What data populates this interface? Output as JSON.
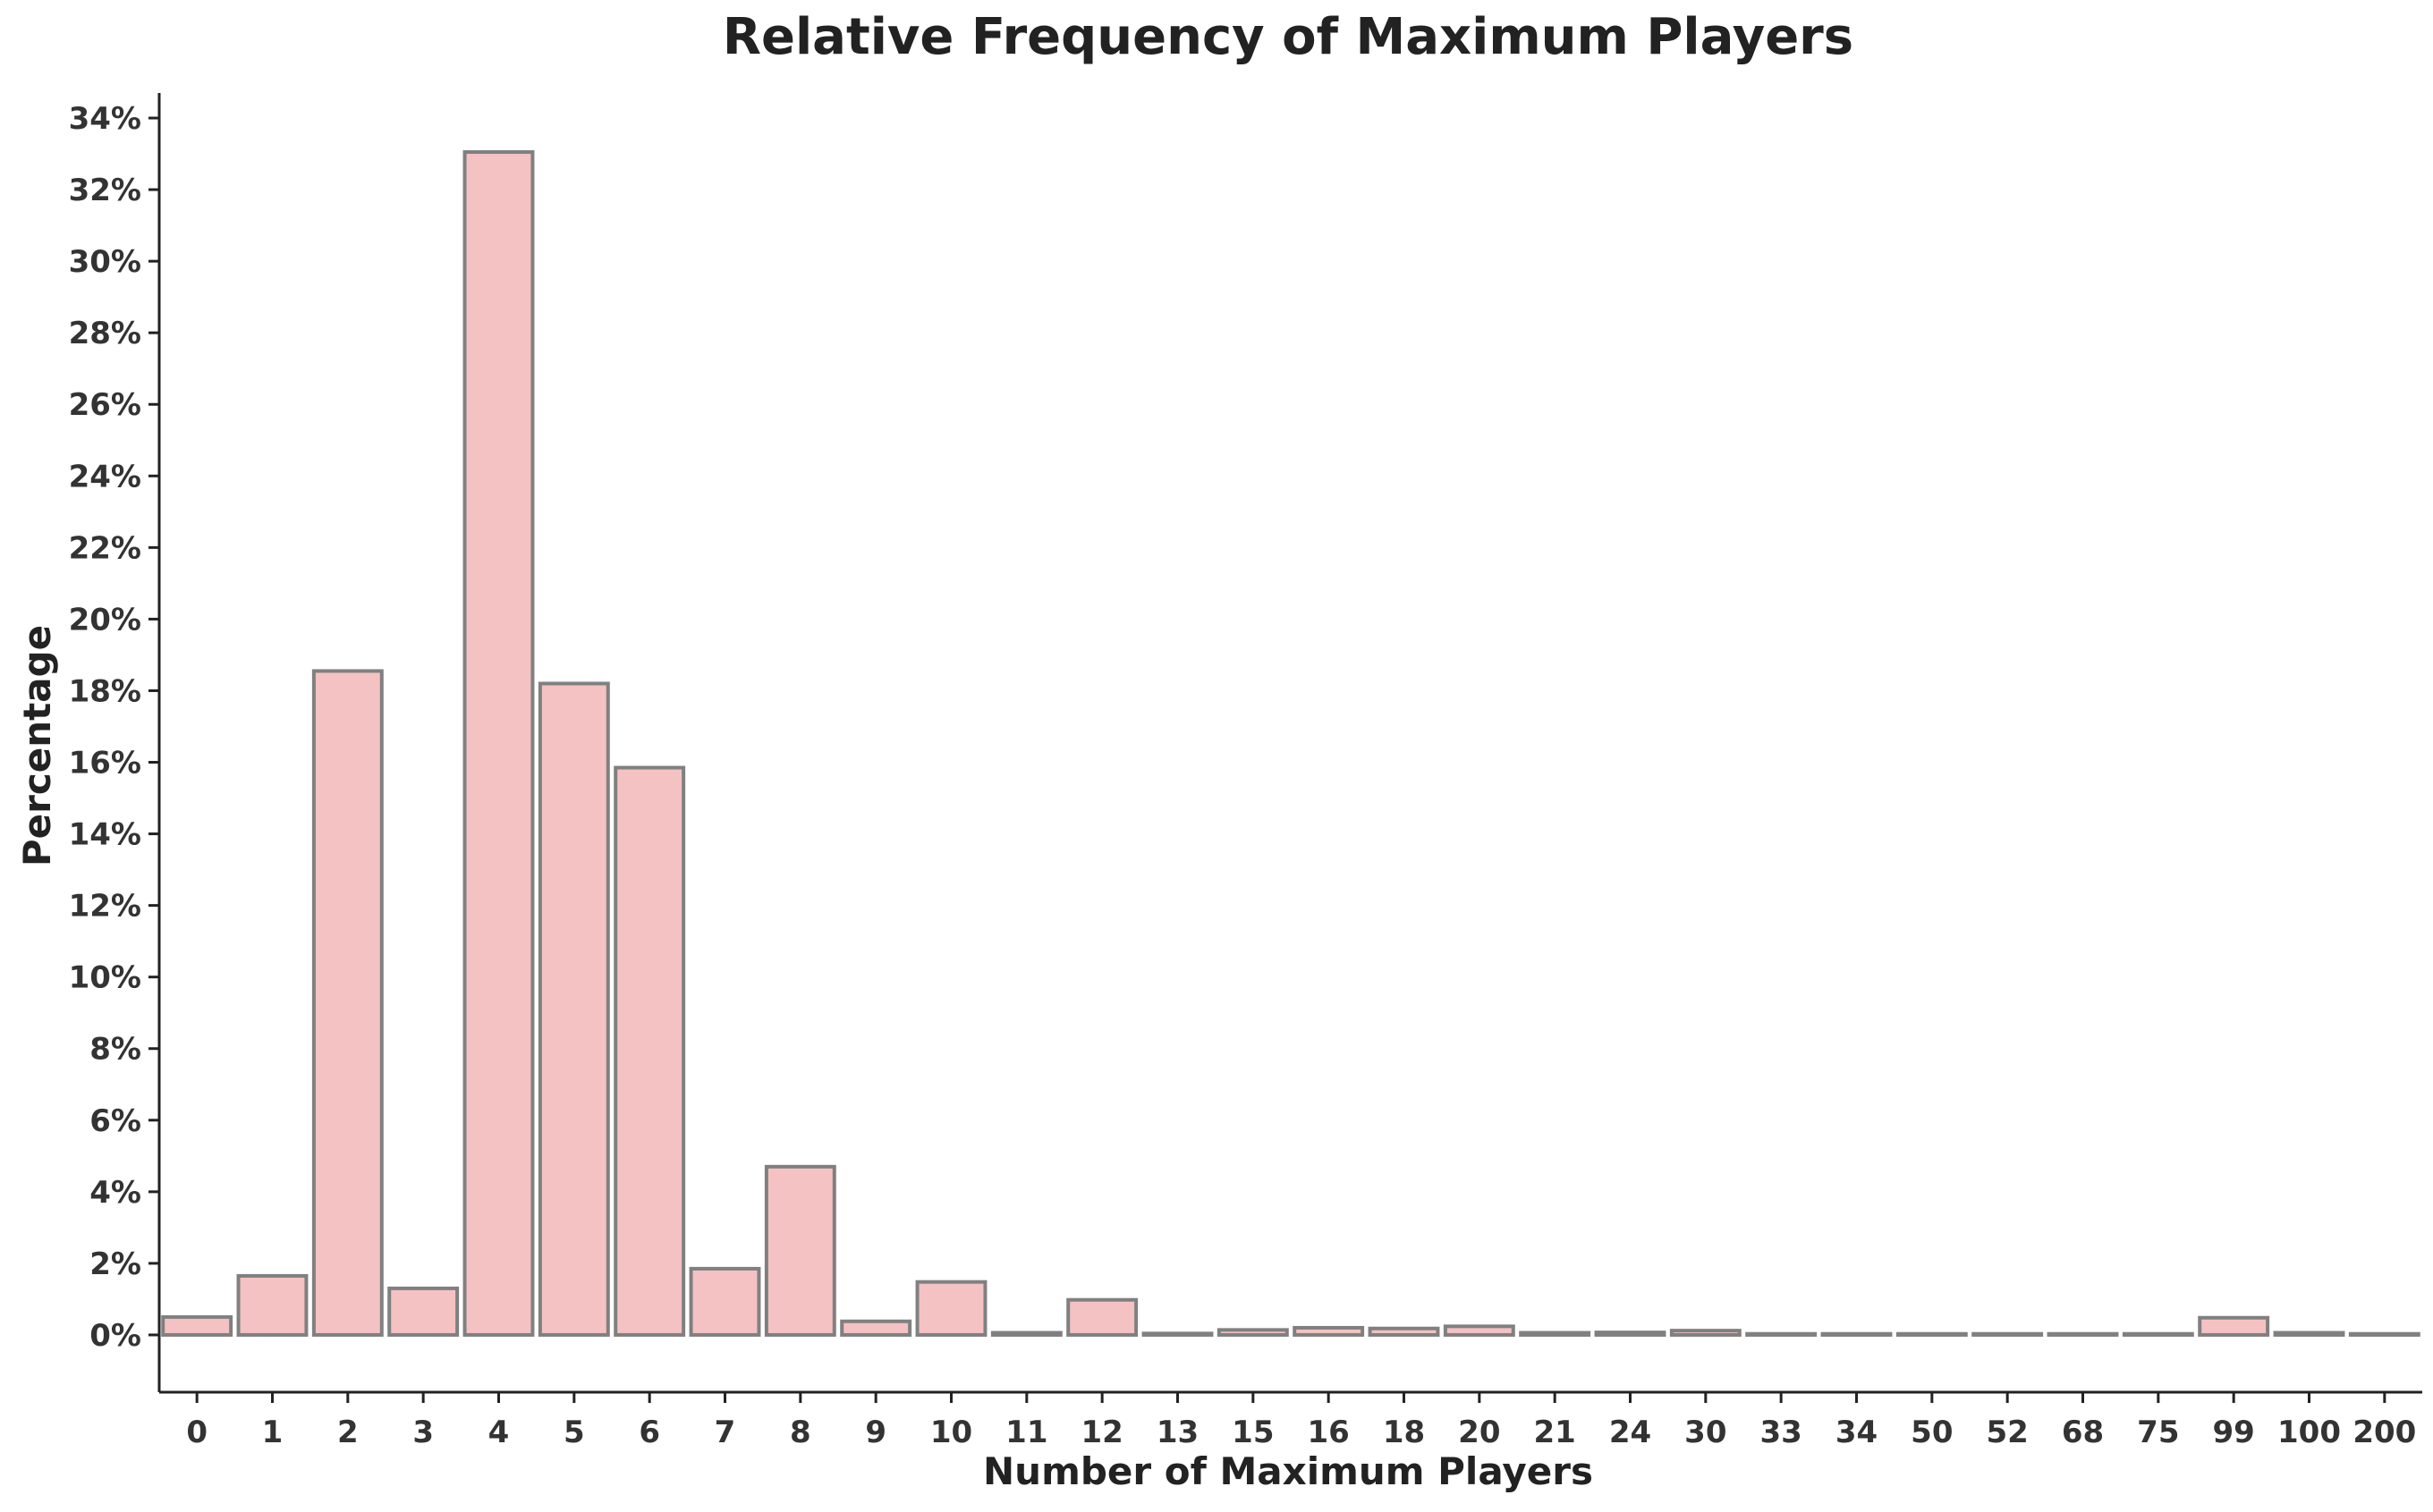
{
  "chart_data": {
    "type": "bar",
    "title": "Relative Frequency of Maximum Players",
    "xlabel": "Number of Maximum Players",
    "ylabel": "Percentage",
    "categories": [
      "0",
      "1",
      "2",
      "3",
      "4",
      "5",
      "6",
      "7",
      "8",
      "9",
      "10",
      "11",
      "12",
      "13",
      "15",
      "16",
      "18",
      "20",
      "21",
      "24",
      "30",
      "33",
      "34",
      "50",
      "52",
      "68",
      "75",
      "99",
      "100",
      "200"
    ],
    "values": [
      0.5,
      1.65,
      18.55,
      1.3,
      33.05,
      18.2,
      15.85,
      1.85,
      4.7,
      0.38,
      1.48,
      0.06,
      0.98,
      0.04,
      0.14,
      0.2,
      0.18,
      0.24,
      0.06,
      0.07,
      0.12,
      0.03,
      0.03,
      0.03,
      0.03,
      0.03,
      0.03,
      0.48,
      0.06,
      0.03
    ],
    "y_ticks": [
      "0%",
      "2%",
      "4%",
      "6%",
      "8%",
      "10%",
      "12%",
      "14%",
      "16%",
      "18%",
      "20%",
      "22%",
      "24%",
      "26%",
      "28%",
      "30%",
      "32%",
      "34%"
    ],
    "ylim": [
      -1.6,
      34.6
    ],
    "grid": false,
    "legend": "none",
    "colors": {
      "bar_fill": "#f4c2c2",
      "bar_edge": "#808080",
      "axis": "#222222",
      "text": "#222222"
    }
  }
}
